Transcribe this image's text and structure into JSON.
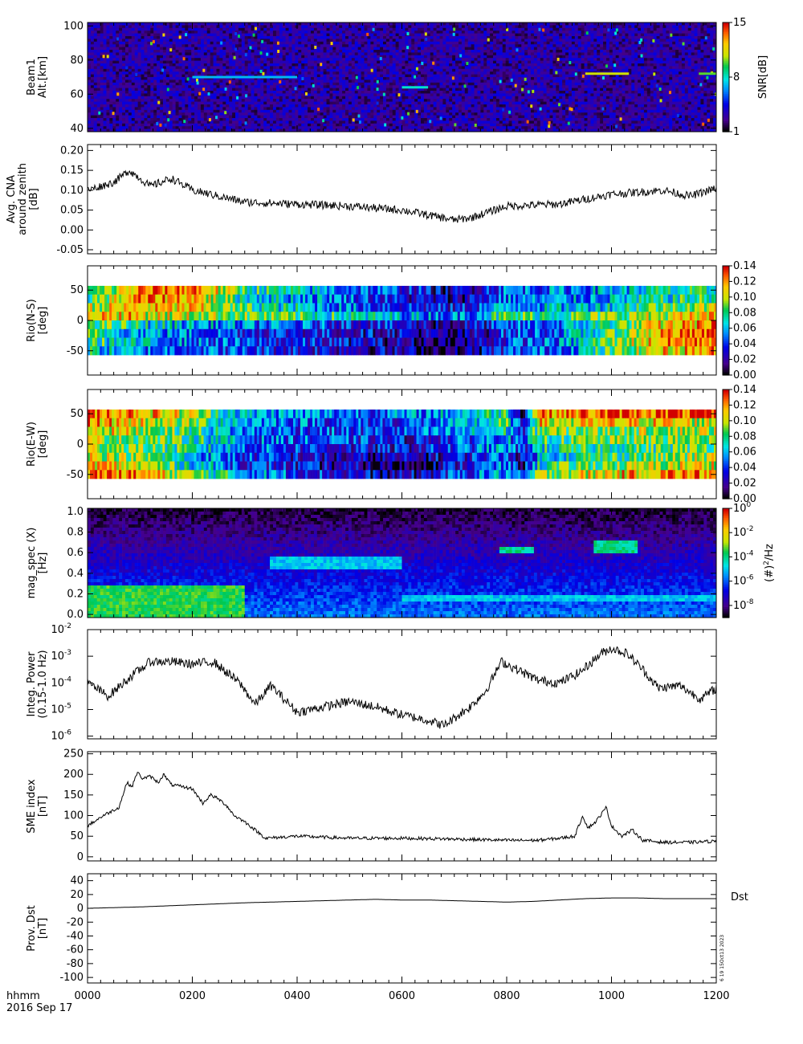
{
  "figure": {
    "time_axis": {
      "unit_label": "hhmm",
      "date_label": "2016 Sep 17",
      "ticks": [
        "0000",
        "0200",
        "0400",
        "0600",
        "0800",
        "1000",
        "1200"
      ]
    },
    "stamp": "6 19 15Oct13 2023"
  },
  "colors": {
    "line": "#000000",
    "background": "#ffffff"
  },
  "chart_data": [
    {
      "id": "beam1",
      "type": "heatmap",
      "ylabel": [
        "Beam1",
        "Alt.[km]"
      ],
      "ylim": [
        38,
        102
      ],
      "yticks": [
        "100",
        "80",
        "60",
        "40"
      ],
      "colorbar": {
        "label": "SNR[dB]",
        "min": 1,
        "max": 15,
        "ticks": [
          "15",
          "8",
          "1"
        ]
      },
      "background_level": 3,
      "features": [
        {
          "time": "0200-0400",
          "altitude": 70,
          "snr": 7
        },
        {
          "time": "0600-0630",
          "altitude": 64,
          "snr": 8
        },
        {
          "time": "0930-1020",
          "altitude": 72,
          "snr": 11
        },
        {
          "time": "1140-1200",
          "altitude": 72,
          "snr": 10
        }
      ]
    },
    {
      "id": "cna",
      "type": "line",
      "ylabel": [
        "Avg. CNA",
        "around zenith",
        "[dB]"
      ],
      "ylim": [
        -0.06,
        0.215
      ],
      "yticks": [
        "0.20",
        "0.15",
        "0.10",
        "0.05",
        "0.00",
        "-0.05"
      ],
      "series": [
        {
          "t": [
            0,
            0.5,
            0.8,
            1.2,
            1.6,
            2.0,
            3.0,
            4.0,
            5.0,
            6.0,
            7.0,
            7.3,
            8.0,
            9.0,
            10.0,
            11.0,
            11.5,
            12.0
          ],
          "v": [
            0.1,
            0.12,
            0.15,
            0.11,
            0.13,
            0.1,
            0.07,
            0.065,
            0.06,
            0.05,
            0.025,
            0.03,
            0.06,
            0.065,
            0.09,
            0.1,
            0.085,
            0.105
          ]
        }
      ]
    },
    {
      "id": "rio_ns",
      "type": "heatmap",
      "ylabel": [
        "Rio(N-S)",
        "[deg]"
      ],
      "ylim": [
        -90,
        90
      ],
      "data_extent": [
        -57,
        57
      ],
      "yticks": [
        "50",
        "0",
        "-50"
      ],
      "colorbar": {
        "min": 0,
        "max": 0.14,
        "ticks": [
          "0.14",
          "0.12",
          "0.10",
          "0.08",
          "0.06",
          "0.04",
          "0.02",
          "0.00"
        ]
      },
      "rows": [
        {
          "lat": 50,
          "t": [
            0,
            1,
            2,
            3,
            5,
            6,
            7,
            8,
            9,
            10,
            11,
            12
          ],
          "v": [
            0.07,
            0.12,
            0.13,
            0.08,
            0.05,
            0.04,
            0.02,
            0.05,
            0.05,
            0.06,
            0.07,
            0.07
          ]
        },
        {
          "lat": 35,
          "t": [
            0,
            1,
            2,
            3,
            5,
            6,
            7,
            8,
            9,
            10,
            11,
            12
          ],
          "v": [
            0.08,
            0.12,
            0.12,
            0.07,
            0.05,
            0.03,
            0.02,
            0.05,
            0.05,
            0.06,
            0.07,
            0.08
          ]
        },
        {
          "lat": 20,
          "t": [
            0,
            1,
            2,
            3,
            5,
            6,
            7,
            8,
            9,
            10,
            11,
            12
          ],
          "v": [
            0.1,
            0.11,
            0.11,
            0.08,
            0.05,
            0.04,
            0.03,
            0.06,
            0.06,
            0.07,
            0.09,
            0.1
          ]
        },
        {
          "lat": 5,
          "t": [
            0,
            1,
            2,
            3,
            5,
            6,
            7,
            8,
            9,
            10,
            11,
            12
          ],
          "v": [
            0.12,
            0.11,
            0.1,
            0.09,
            0.07,
            0.06,
            0.05,
            0.08,
            0.08,
            0.09,
            0.1,
            0.11
          ]
        },
        {
          "lat": -10,
          "t": [
            0,
            1,
            2,
            3,
            5,
            6,
            7,
            8,
            9,
            10,
            11,
            12
          ],
          "v": [
            0.09,
            0.07,
            0.06,
            0.05,
            0.04,
            0.03,
            0.02,
            0.04,
            0.05,
            0.08,
            0.11,
            0.12
          ]
        },
        {
          "lat": -25,
          "t": [
            0,
            1,
            2,
            3,
            5,
            6,
            7,
            8,
            9,
            10,
            11,
            12
          ],
          "v": [
            0.08,
            0.06,
            0.05,
            0.04,
            0.03,
            0.03,
            0.01,
            0.04,
            0.05,
            0.08,
            0.12,
            0.13
          ]
        },
        {
          "lat": -40,
          "t": [
            0,
            1,
            2,
            3,
            5,
            6,
            7,
            8,
            9,
            10,
            11,
            12
          ],
          "v": [
            0.08,
            0.06,
            0.05,
            0.04,
            0.03,
            0.02,
            0.01,
            0.04,
            0.05,
            0.09,
            0.12,
            0.13
          ]
        },
        {
          "lat": -52,
          "t": [
            0,
            1,
            2,
            3,
            5,
            6,
            7,
            8,
            9,
            10,
            11,
            12
          ],
          "v": [
            0.07,
            0.05,
            0.05,
            0.04,
            0.03,
            0.02,
            0.01,
            0.04,
            0.05,
            0.08,
            0.11,
            0.12
          ]
        }
      ]
    },
    {
      "id": "rio_ew",
      "type": "heatmap",
      "ylabel": [
        "Rio(E-W)",
        "[deg]"
      ],
      "ylim": [
        -90,
        90
      ],
      "data_extent": [
        -57,
        57
      ],
      "yticks": [
        "50",
        "0",
        "-50"
      ],
      "colorbar": {
        "min": 0,
        "max": 0.14,
        "ticks": [
          "0.14",
          "0.12",
          "0.10",
          "0.08",
          "0.06",
          "0.04",
          "0.02",
          "0.00"
        ]
      },
      "rows": [
        {
          "lat": 50,
          "t": [
            0,
            1,
            2,
            3,
            5,
            6,
            7,
            8,
            8.3,
            8.6,
            9,
            10,
            11,
            12
          ],
          "v": [
            0.13,
            0.12,
            0.1,
            0.06,
            0.05,
            0.05,
            0.06,
            0.08,
            0.01,
            0.13,
            0.12,
            0.13,
            0.13,
            0.13
          ]
        },
        {
          "lat": 35,
          "t": [
            0,
            1,
            2,
            3,
            5,
            6,
            7,
            8,
            8.3,
            8.6,
            9,
            10,
            11,
            12
          ],
          "v": [
            0.12,
            0.11,
            0.09,
            0.06,
            0.04,
            0.04,
            0.05,
            0.08,
            0.02,
            0.11,
            0.1,
            0.11,
            0.11,
            0.1
          ]
        },
        {
          "lat": 20,
          "t": [
            0,
            1,
            2,
            3,
            5,
            6,
            7,
            8,
            8.3,
            8.6,
            9,
            10,
            11,
            12
          ],
          "v": [
            0.11,
            0.1,
            0.08,
            0.05,
            0.04,
            0.04,
            0.05,
            0.07,
            0.03,
            0.09,
            0.09,
            0.09,
            0.1,
            0.1
          ]
        },
        {
          "lat": 5,
          "t": [
            0,
            1,
            2,
            3,
            5,
            6,
            7,
            8,
            8.3,
            8.6,
            9,
            10,
            11,
            12
          ],
          "v": [
            0.1,
            0.09,
            0.08,
            0.05,
            0.04,
            0.03,
            0.04,
            0.06,
            0.03,
            0.08,
            0.08,
            0.09,
            0.09,
            0.09
          ]
        },
        {
          "lat": -10,
          "t": [
            0,
            1,
            2,
            3,
            5,
            6,
            7,
            8,
            8.3,
            8.6,
            9,
            10,
            11,
            12
          ],
          "v": [
            0.1,
            0.09,
            0.07,
            0.05,
            0.03,
            0.03,
            0.04,
            0.06,
            0.03,
            0.07,
            0.07,
            0.08,
            0.08,
            0.09
          ]
        },
        {
          "lat": -25,
          "t": [
            0,
            1,
            2,
            3,
            5,
            6,
            7,
            8,
            8.3,
            8.6,
            9,
            10,
            11,
            12
          ],
          "v": [
            0.11,
            0.09,
            0.06,
            0.04,
            0.02,
            0.02,
            0.03,
            0.05,
            0.02,
            0.06,
            0.07,
            0.08,
            0.09,
            0.1
          ]
        },
        {
          "lat": -40,
          "t": [
            0,
            1,
            2,
            3,
            5,
            6,
            7,
            8,
            8.3,
            8.6,
            9,
            10,
            11,
            12
          ],
          "v": [
            0.12,
            0.1,
            0.07,
            0.04,
            0.02,
            0.01,
            0.03,
            0.05,
            0.02,
            0.07,
            0.08,
            0.09,
            0.1,
            0.11
          ]
        },
        {
          "lat": -52,
          "t": [
            0,
            1,
            2,
            3,
            5,
            6,
            7,
            8,
            8.3,
            8.6,
            9,
            10,
            11,
            12
          ],
          "v": [
            0.13,
            0.12,
            0.09,
            0.06,
            0.03,
            0.02,
            0.04,
            0.06,
            0.03,
            0.09,
            0.1,
            0.11,
            0.12,
            0.12
          ]
        }
      ]
    },
    {
      "id": "mag_spec",
      "type": "heatmap",
      "ylabel": [
        "mag_spec (X)",
        "[Hz]"
      ],
      "ylim": [
        -0.03,
        1.03
      ],
      "yticks": [
        "1.0",
        "0.8",
        "0.6",
        "0.4",
        "0.2",
        "0.0"
      ],
      "colorbar": {
        "log_min": -9,
        "log_max": 0,
        "ticks": [
          {
            "base": "10",
            "exp": "0"
          },
          {
            "base": "10",
            "exp": "-2"
          },
          {
            "base": "10",
            "exp": "-4"
          },
          {
            "base": "10",
            "exp": "-6"
          },
          {
            "base": "10",
            "exp": "-8"
          }
        ],
        "label_main": "(#)",
        "label_sup": "2",
        "label_tail": "/Hz"
      },
      "background_log": -7.2,
      "features": [
        {
          "time": "0000-0300",
          "freq": "0.0-0.3",
          "log_power": -3.5
        },
        {
          "time": "0330-0600",
          "freq": "0.45-0.55",
          "log_power": -5
        },
        {
          "time": "0750-0830",
          "freq": "0.58-0.65",
          "log_power": -4
        },
        {
          "time": "0940-1030",
          "freq": "0.6-0.7",
          "log_power": -4
        },
        {
          "time": "0600-1200",
          "freq": "0.15",
          "log_power": -5
        }
      ]
    },
    {
      "id": "integ_power",
      "type": "line",
      "yscale": "log",
      "ylabel": [
        "Integ. Power",
        "(0.15-1.0 Hz)"
      ],
      "ylim_log": [
        -6.1,
        -2
      ],
      "yticks": [
        {
          "base": "10",
          "exp": "-2"
        },
        {
          "base": "10",
          "exp": "-3"
        },
        {
          "base": "10",
          "exp": "-4"
        },
        {
          "base": "10",
          "exp": "-5"
        },
        {
          "base": "10",
          "exp": "-6"
        }
      ],
      "series": [
        {
          "t": [
            0,
            0.4,
            0.8,
            1.2,
            1.6,
            2.0,
            2.4,
            2.9,
            3.2,
            3.5,
            4.0,
            4.5,
            5.0,
            5.5,
            6.0,
            6.5,
            6.8,
            7.3,
            7.6,
            7.9,
            8.2,
            8.6,
            9.0,
            9.4,
            9.8,
            10.0,
            10.3,
            10.6,
            10.9,
            11.3,
            11.7,
            12.0
          ],
          "v": [
            -4.0,
            -4.5,
            -3.8,
            -3.2,
            -3.2,
            -3.3,
            -3.2,
            -4.0,
            -4.8,
            -4.1,
            -5.1,
            -4.9,
            -4.7,
            -4.9,
            -5.2,
            -5.4,
            -5.6,
            -4.9,
            -4.3,
            -3.2,
            -3.5,
            -3.9,
            -4.0,
            -3.6,
            -2.9,
            -2.7,
            -2.9,
            -3.5,
            -4.2,
            -4.1,
            -4.6,
            -4.2
          ]
        }
      ]
    },
    {
      "id": "sme",
      "type": "line",
      "ylabel": [
        "SME index",
        "[nT]"
      ],
      "ylim": [
        -10,
        255
      ],
      "yticks": [
        "250",
        "200",
        "150",
        "100",
        "50",
        "0"
      ],
      "series": [
        {
          "t": [
            0,
            0.3,
            0.6,
            0.75,
            0.85,
            0.95,
            1.05,
            1.2,
            1.35,
            1.45,
            1.6,
            1.8,
            2.0,
            2.2,
            2.35,
            2.5,
            2.65,
            2.8,
            3.0,
            3.4,
            4.0,
            5.0,
            6.0,
            7.0,
            8.0,
            8.6,
            9.0,
            9.3,
            9.45,
            9.55,
            9.7,
            9.9,
            10.0,
            10.2,
            10.4,
            10.6,
            11.0,
            11.5,
            12.0
          ],
          "v": [
            75,
            100,
            120,
            180,
            170,
            205,
            190,
            195,
            180,
            200,
            175,
            170,
            165,
            130,
            150,
            140,
            125,
            100,
            85,
            45,
            50,
            45,
            45,
            43,
            40,
            40,
            45,
            50,
            100,
            70,
            85,
            120,
            75,
            50,
            65,
            40,
            35,
            35,
            38
          ]
        }
      ]
    },
    {
      "id": "dst",
      "type": "line",
      "ylabel": [
        "Prov. Dst",
        "[nT]"
      ],
      "ylim": [
        -108,
        50
      ],
      "yticks": [
        "40",
        "20",
        "0",
        "-20",
        "-40",
        "-60",
        "-80",
        "-100"
      ],
      "legend": "Dst",
      "series": [
        {
          "t": [
            0,
            1,
            2,
            3,
            4,
            5,
            5.5,
            6,
            6.5,
            7,
            7.5,
            8,
            8.5,
            9,
            9.5,
            10,
            10.5,
            11,
            11.5,
            12
          ],
          "v": [
            0,
            2,
            5,
            8,
            10,
            12,
            13,
            12,
            12,
            11,
            10,
            9,
            10,
            12,
            14,
            15,
            15,
            14,
            14,
            14
          ]
        }
      ]
    }
  ]
}
